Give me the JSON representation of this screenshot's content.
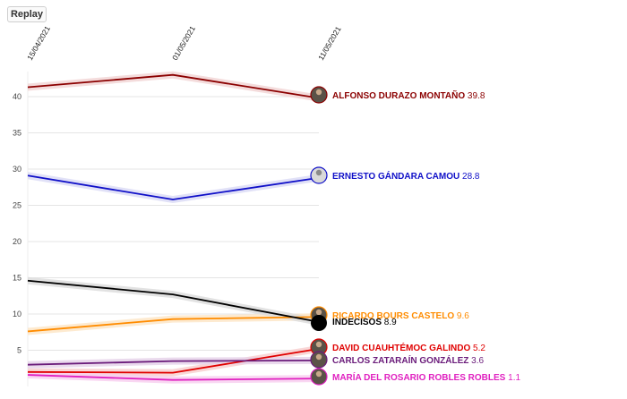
{
  "replay_label": "Replay",
  "chart_data": {
    "type": "line",
    "title": "",
    "xlabel": "",
    "ylabel": "",
    "x": [
      "15/04/2021",
      "01/05/2021",
      "11/05/2021"
    ],
    "yticks": [
      5,
      10,
      15,
      20,
      25,
      30,
      35,
      40
    ],
    "ylim": [
      0,
      43
    ],
    "grid": true,
    "legend": "end-of-line labels",
    "series": [
      {
        "name": "ALFONSO DURAZO MONTAÑO",
        "value_label": "39.8",
        "values": [
          41.3,
          43.0,
          39.8
        ],
        "color": "#8b0000",
        "band": "#f2d6d6"
      },
      {
        "name": "ERNESTO GÁNDARA CAMOU",
        "value_label": "28.8",
        "values": [
          29.1,
          25.8,
          28.8
        ],
        "color": "#1010c8",
        "band": "#dcdcf6"
      },
      {
        "name": "RICARDO BOURS CASTELO",
        "value_label": "9.6",
        "values": [
          7.6,
          9.3,
          9.6
        ],
        "color": "#ff8c00",
        "band": "#fde6c8"
      },
      {
        "name": "INDECISOS",
        "value_label": "8.9",
        "values": [
          14.6,
          12.7,
          8.9
        ],
        "color": "#000000",
        "band": "#dddddd"
      },
      {
        "name": "DAVID CUAUHTÉMOC GALINDO",
        "value_label": "5.2",
        "values": [
          2.0,
          1.9,
          5.2
        ],
        "color": "#e00000",
        "band": "#f8d0d0"
      },
      {
        "name": "CARLOS ZATARAÍN GONZÁLEZ",
        "value_label": "3.6",
        "values": [
          3.0,
          3.5,
          3.6
        ],
        "color": "#6a1b7a",
        "band": "#e6d4ea"
      },
      {
        "name": "MARÍA DEL ROSARIO ROBLES ROBLES",
        "value_label": "1.1",
        "values": [
          1.6,
          0.9,
          1.1
        ],
        "color": "#e020c0",
        "band": "#f8d0f0"
      }
    ]
  }
}
